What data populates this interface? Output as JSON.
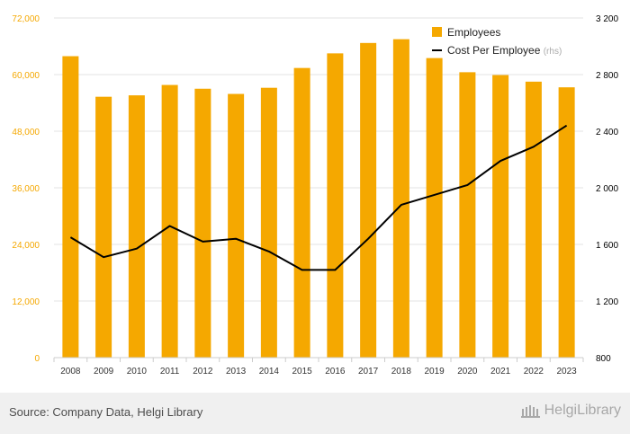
{
  "chart_data": {
    "type": "bar+line",
    "categories": [
      "2008",
      "2009",
      "2010",
      "2011",
      "2012",
      "2013",
      "2014",
      "2015",
      "2016",
      "2017",
      "2018",
      "2019",
      "2020",
      "2021",
      "2022",
      "2023"
    ],
    "series": [
      {
        "name": "Employees",
        "type": "bar",
        "axis": "left",
        "color": "#f5a800",
        "values": [
          63900,
          55300,
          55600,
          57800,
          57000,
          55900,
          57200,
          61400,
          64500,
          66700,
          67500,
          63500,
          60500,
          59900,
          58500,
          57300
        ]
      },
      {
        "name": "Cost Per Employee",
        "name_suffix": "(rhs)",
        "type": "line",
        "axis": "right",
        "color": "#000000",
        "values": [
          1650,
          1510,
          1570,
          1730,
          1620,
          1640,
          1550,
          1420,
          1420,
          1640,
          1880,
          1950,
          2020,
          2190,
          2290,
          2440
        ]
      }
    ],
    "y_left": {
      "ylim": [
        0,
        72000
      ],
      "ticks": [
        0,
        12000,
        24000,
        36000,
        48000,
        60000,
        72000
      ],
      "tick_labels": [
        "0",
        "12,000",
        "24,000",
        "36,000",
        "48,000",
        "60,000",
        "72,000"
      ],
      "color": "#f5a800"
    },
    "y_right": {
      "ylim": [
        800,
        3200
      ],
      "ticks": [
        800,
        1200,
        1600,
        2000,
        2400,
        2800,
        3200
      ],
      "tick_labels": [
        "800",
        "1 200",
        "1 600",
        "2 000",
        "2 400",
        "2 800",
        "3 200"
      ],
      "color": "#000000"
    },
    "grid": true,
    "legend_position": "top-right"
  },
  "footer": {
    "source": "Source: Company Data, Helgi Library",
    "brand": "HelgiLibrary"
  }
}
